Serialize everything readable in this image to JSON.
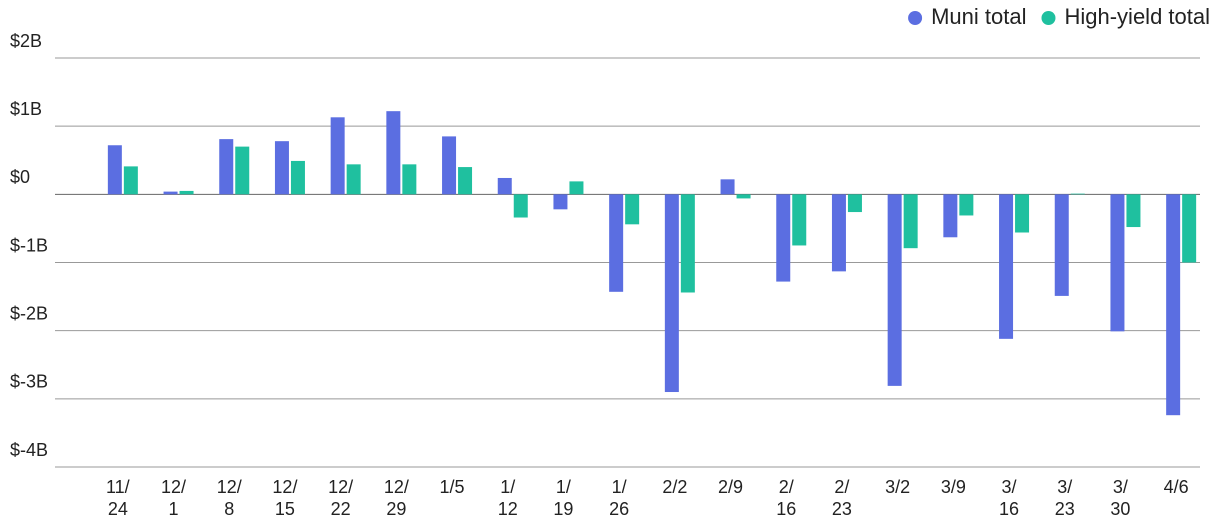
{
  "chart_data": {
    "type": "bar",
    "categories": [
      "11/\n24",
      "12/\n1",
      "12/\n8",
      "12/\n15",
      "12/\n22",
      "12/\n29",
      "1/5",
      "1/\n12",
      "1/\n19",
      "1/\n26",
      "2/2",
      "2/9",
      "2/\n16",
      "2/\n23",
      "3/2",
      "3/9",
      "3/\n16",
      "3/\n23",
      "3/\n30",
      "4/6"
    ],
    "series": [
      {
        "name": "Muni total",
        "color": "#5b6ee1",
        "values": [
          0.72,
          0.04,
          0.81,
          0.78,
          1.13,
          1.22,
          0.85,
          0.24,
          -0.22,
          -1.43,
          -2.9,
          0.22,
          -1.28,
          -1.13,
          -2.81,
          -0.63,
          -2.12,
          -1.49,
          -2.01,
          -3.24
        ]
      },
      {
        "name": "High-yield total",
        "color": "#1fc09f",
        "values": [
          0.41,
          0.05,
          0.7,
          0.49,
          0.44,
          0.44,
          0.4,
          -0.34,
          0.19,
          -0.44,
          -1.44,
          -0.06,
          -0.75,
          -0.26,
          -0.79,
          -0.31,
          -0.56,
          0.01,
          -0.48,
          -1.0
        ]
      }
    ],
    "ylim": [
      -4,
      2
    ],
    "yticks": [
      {
        "value": 2,
        "label": "$2B"
      },
      {
        "value": 1,
        "label": "$1B"
      },
      {
        "value": 0,
        "label": "$0"
      },
      {
        "value": -1,
        "label": "$-1B"
      },
      {
        "value": -2,
        "label": "$-2B"
      },
      {
        "value": -3,
        "label": "$-3B"
      },
      {
        "value": -4,
        "label": "$-4B"
      }
    ],
    "grid": true,
    "legend": "top-right"
  }
}
